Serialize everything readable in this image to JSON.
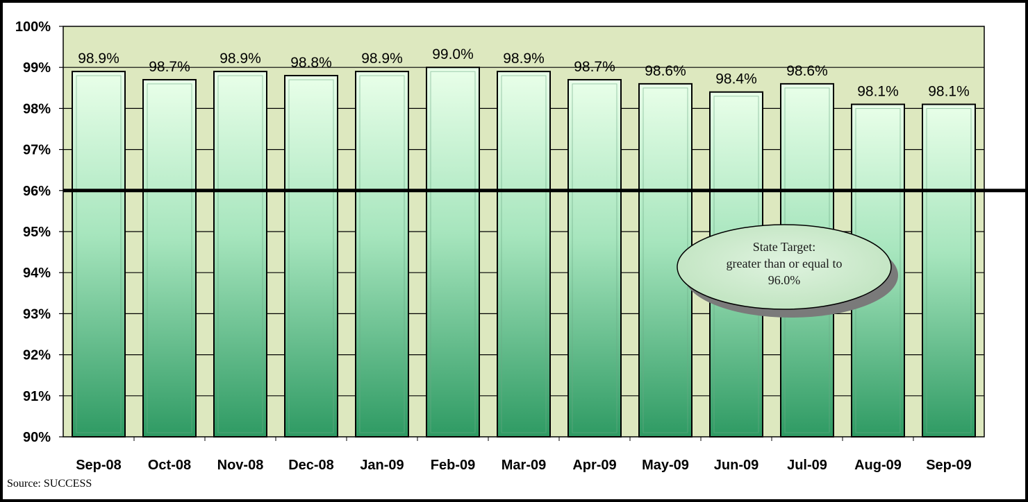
{
  "chart_data": {
    "type": "bar",
    "categories": [
      "Sep-08",
      "Oct-08",
      "Nov-08",
      "Dec-08",
      "Jan-09",
      "Feb-09",
      "Mar-09",
      "Apr-09",
      "May-09",
      "Jun-09",
      "Jul-09",
      "Aug-09",
      "Sep-09"
    ],
    "values": [
      98.9,
      98.7,
      98.9,
      98.8,
      98.9,
      99.0,
      98.9,
      98.7,
      98.6,
      98.4,
      98.6,
      98.1,
      98.1
    ],
    "data_labels": [
      "98.9%",
      "98.7%",
      "98.9%",
      "98.8%",
      "98.9%",
      "99.0%",
      "98.9%",
      "98.7%",
      "98.6%",
      "98.4%",
      "98.6%",
      "98.1%",
      "98.1%"
    ],
    "ylim": [
      90,
      100
    ],
    "yticks": [
      90,
      91,
      92,
      93,
      94,
      95,
      96,
      97,
      98,
      99,
      100
    ],
    "ytick_labels": [
      "90%",
      "91%",
      "92%",
      "93%",
      "94%",
      "95%",
      "96%",
      "97%",
      "98%",
      "99%",
      "100%"
    ],
    "grid": true,
    "target": {
      "value": 96,
      "callout_lines": [
        "State Target:",
        "greater than or equal to",
        "96.0%"
      ]
    },
    "colors": {
      "plot_background": "#dde8bf",
      "bar_top": "#e9ffe9",
      "bar_bottom": "#2e9a63",
      "callout_fill": "#bfe3bf"
    }
  },
  "source": "Source: SUCCESS"
}
